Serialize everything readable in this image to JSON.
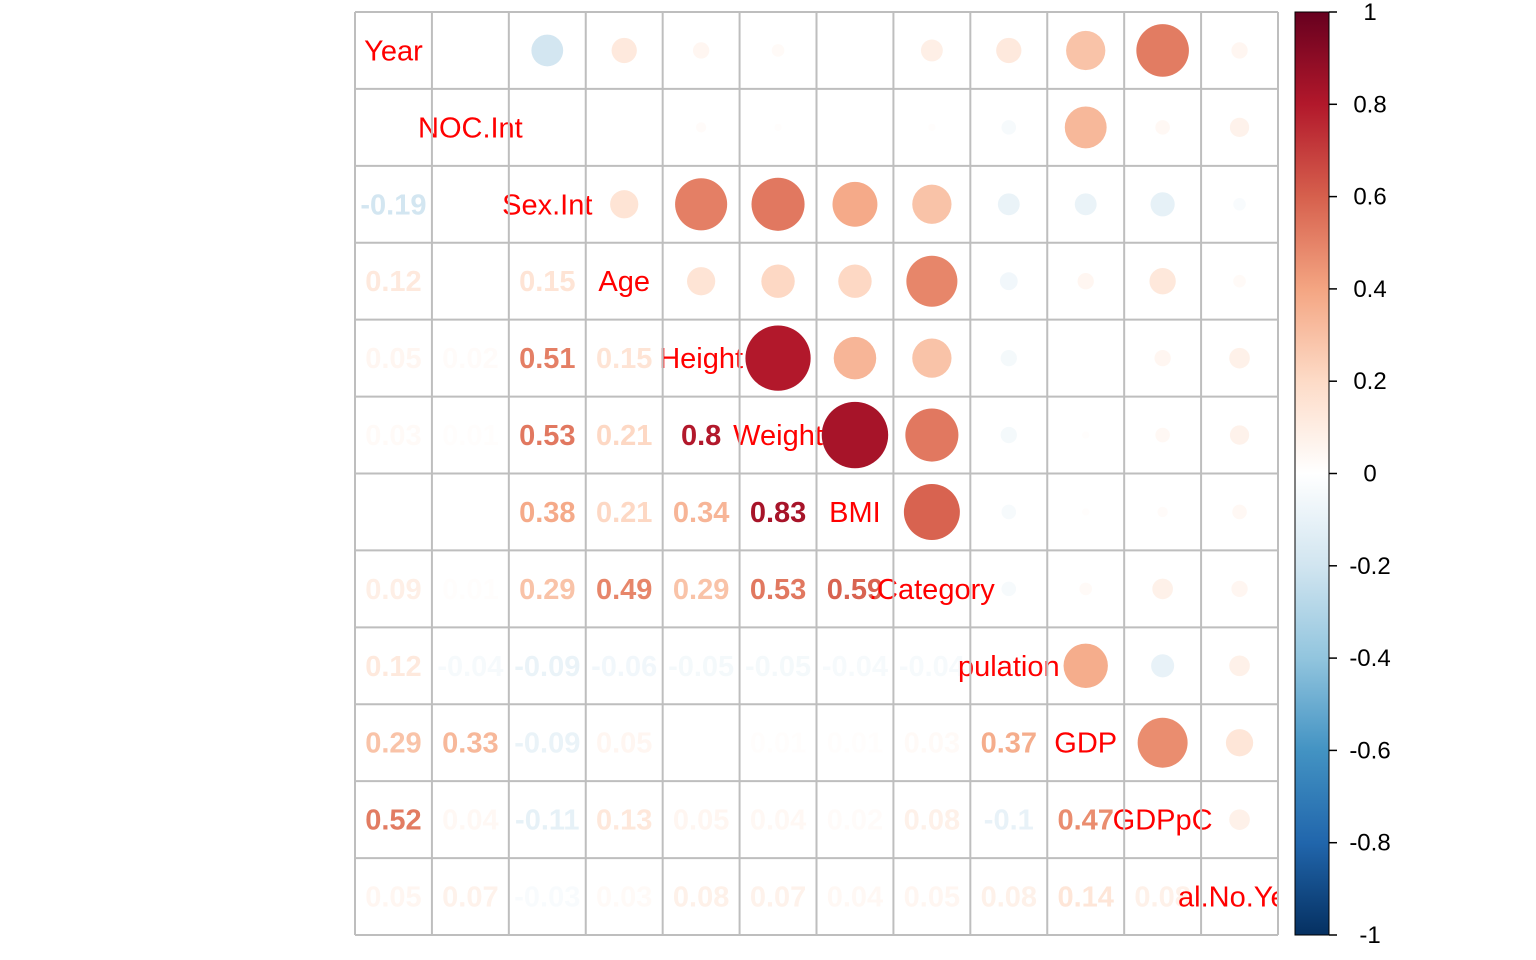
{
  "chart_data": {
    "type": "heatmap",
    "subtype": "correlation-mixed",
    "upper": "circle",
    "lower": "number",
    "variables": [
      "Year",
      "NOC.Int",
      "Sex.Int",
      "Age",
      "Height",
      "Weight",
      "BMI",
      ".Category",
      "Population",
      "GDP",
      "GDPpC",
      "al.No.Yes"
    ],
    "diagonal_labels": [
      "Year",
      "NOC.Int",
      "Sex.Int",
      "Age",
      "Height",
      "Weight",
      "BMI",
      ".Category",
      "pulation",
      "GDP",
      "GDPpC",
      "al.No.Yes"
    ],
    "matrix": [
      [
        1,
        0,
        -0.19,
        0.12,
        0.05,
        0.03,
        0,
        0.09,
        0.12,
        0.29,
        0.52,
        0.05
      ],
      [
        0,
        1,
        0,
        0,
        0.02,
        0.01,
        0,
        0.01,
        -0.04,
        0.33,
        0.04,
        0.07
      ],
      [
        -0.19,
        0,
        1,
        0.15,
        0.51,
        0.53,
        0.38,
        0.29,
        -0.09,
        -0.09,
        -0.11,
        -0.03
      ],
      [
        0.12,
        0,
        0.15,
        1,
        0.15,
        0.21,
        0.21,
        0.49,
        -0.06,
        0.05,
        0.13,
        0.03
      ],
      [
        0.05,
        0.02,
        0.51,
        0.15,
        1,
        0.8,
        0.34,
        0.29,
        -0.05,
        0,
        0.05,
        0.08
      ],
      [
        0.03,
        0.01,
        0.53,
        0.21,
        0.8,
        1,
        0.83,
        0.53,
        -0.05,
        0.01,
        0.04,
        0.07
      ],
      [
        0,
        0,
        0.38,
        0.21,
        0.34,
        0.83,
        1,
        0.59,
        -0.04,
        0.01,
        0.02,
        0.04
      ],
      [
        0.09,
        0.01,
        0.29,
        0.49,
        0.29,
        0.53,
        0.59,
        1,
        -0.04,
        0.03,
        0.08,
        0.05
      ],
      [
        0.12,
        -0.04,
        -0.09,
        -0.06,
        -0.05,
        -0.05,
        -0.04,
        -0.04,
        1,
        0.37,
        -0.1,
        0.08
      ],
      [
        0.29,
        0.33,
        -0.09,
        0.05,
        0,
        0.01,
        0.01,
        0.03,
        0.37,
        1,
        0.47,
        0.14
      ],
      [
        0.52,
        0.04,
        -0.11,
        0.13,
        0.05,
        0.04,
        0.02,
        0.08,
        -0.1,
        0.47,
        1,
        0.08
      ],
      [
        0.05,
        0.07,
        -0.03,
        0.03,
        0.08,
        0.07,
        0.04,
        0.05,
        0.08,
        0.14,
        0.08,
        1
      ]
    ],
    "colorbar": {
      "range": [
        -1,
        1
      ],
      "ticks": [
        "1",
        "0.8",
        "0.6",
        "0.4",
        "0.2",
        "0",
        "-0.2",
        "-0.4",
        "-0.6",
        "-0.8",
        "-1"
      ],
      "colors": [
        "#67001F",
        "#B2182B",
        "#D6604D",
        "#F4A582",
        "#FDDBC7",
        "#FFFFFF",
        "#D1E5F0",
        "#92C5DE",
        "#4393C3",
        "#2166AC",
        "#053061"
      ]
    },
    "grid": true,
    "label_color": "#FF0000"
  }
}
